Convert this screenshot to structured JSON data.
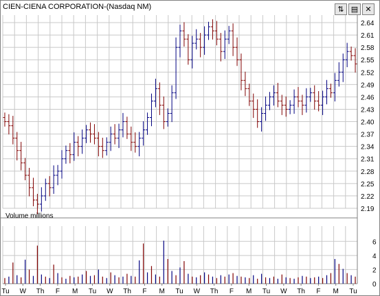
{
  "header": {
    "title": "CIEN-CIENA CORPORATION-(Nasdaq NM)",
    "toolbar": [
      {
        "icon": "refresh-icon",
        "glyph": "⇅"
      },
      {
        "icon": "settings-icon",
        "glyph": "▤"
      },
      {
        "icon": "close-icon",
        "glyph": "✕"
      }
    ]
  },
  "chart_data": [
    {
      "type": "ohlc",
      "title": "CIEN-CIENA CORPORATION-(Nasdaq NM)",
      "y_ticks": [
        "2.64",
        "2.61",
        "2.58",
        "2.55",
        "2.52",
        "2.49",
        "2.46",
        "2.43",
        "2.40",
        "2.37",
        "2.34",
        "2.31",
        "2.28",
        "2.25",
        "2.22",
        "2.19"
      ],
      "ylim": [
        2.19,
        2.645
      ],
      "grid": true,
      "up_color": "#000080",
      "down_color": "#800000",
      "close": [
        2.4,
        2.39,
        2.36,
        2.33,
        2.3,
        2.27,
        2.24,
        2.21,
        2.2,
        2.22,
        2.25,
        2.24,
        2.27,
        2.28,
        2.31,
        2.33,
        2.32,
        2.35,
        2.34,
        2.36,
        2.38,
        2.37,
        2.36,
        2.34,
        2.33,
        2.35,
        2.37,
        2.36,
        2.38,
        2.4,
        2.37,
        2.35,
        2.34,
        2.36,
        2.38,
        2.41,
        2.45,
        2.48,
        2.44,
        2.4,
        2.42,
        2.47,
        2.58,
        2.62,
        2.6,
        2.55,
        2.59,
        2.6,
        2.58,
        2.61,
        2.63,
        2.62,
        2.6,
        2.57,
        2.6,
        2.62,
        2.58,
        2.55,
        2.5,
        2.48,
        2.45,
        2.43,
        2.4,
        2.42,
        2.44,
        2.46,
        2.47,
        2.45,
        2.44,
        2.43,
        2.44,
        2.46,
        2.45,
        2.44,
        2.46,
        2.47,
        2.45,
        2.44,
        2.46,
        2.48,
        2.47,
        2.5,
        2.52,
        2.55,
        2.57,
        2.56,
        2.54
      ]
    },
    {
      "type": "bar",
      "ylabel": "Volume  millions",
      "y_ticks": [
        "6",
        "4",
        "2",
        "0"
      ],
      "ylim": [
        0,
        7
      ],
      "x_tick_labels": [
        "Tu",
        "W",
        "Th",
        "F",
        "M",
        "Tu",
        "W",
        "Th",
        "F",
        "M",
        "Tu",
        "W",
        "Th",
        "F",
        "M",
        "Tu",
        "W",
        "Th",
        "F",
        "M",
        "Tu"
      ],
      "values": [
        0.8,
        1.0,
        3.0,
        1.2,
        0.9,
        3.4,
        2.0,
        1.1,
        5.4,
        1.3,
        1.0,
        0.8,
        2.7,
        1.5,
        0.9,
        0.7,
        1.1,
        0.9,
        1.0,
        1.3,
        1.8,
        1.1,
        1.2,
        2.0,
        1.0,
        0.8,
        1.6,
        1.2,
        0.9,
        1.0,
        1.4,
        1.1,
        1.0,
        3.3,
        5.7,
        1.6,
        2.5,
        1.3,
        1.0,
        6.1,
        3.5,
        1.8,
        1.2,
        2.3,
        3.2,
        1.4,
        1.0,
        0.9,
        1.2,
        1.6,
        1.3,
        1.0,
        0.8,
        1.2,
        1.0,
        1.3,
        1.5,
        1.1,
        1.0,
        0.9,
        0.8,
        1.2,
        0.7,
        1.4,
        0.9,
        0.8,
        1.0,
        0.7,
        1.3,
        0.9,
        0.8,
        0.7,
        0.9,
        1.1,
        1.0,
        0.8,
        0.9,
        1.0,
        0.8,
        1.2,
        1.5,
        3.5,
        2.8,
        2.1,
        1.5,
        1.2,
        1.0
      ]
    }
  ]
}
